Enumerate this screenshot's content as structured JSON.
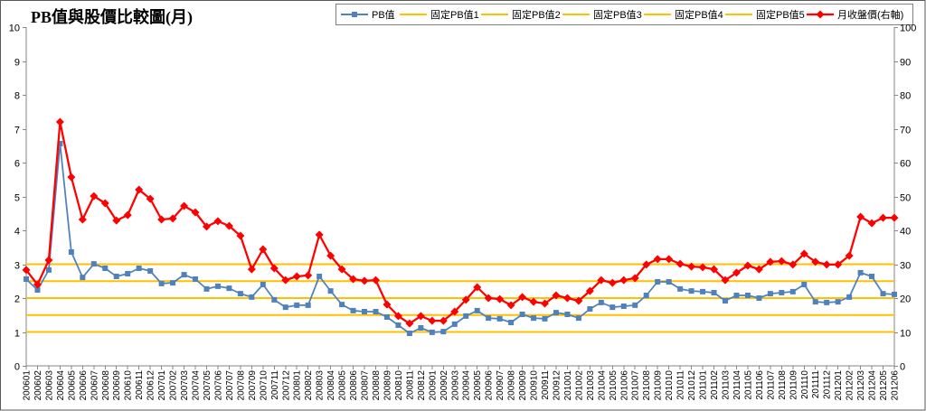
{
  "chart_data": {
    "type": "line",
    "title": "PB值與股價比較圖(月)",
    "ylim": [
      0,
      10
    ],
    "y2lim": [
      0,
      100
    ],
    "y_ticks": [
      0,
      1,
      2,
      3,
      4,
      5,
      6,
      7,
      8,
      9,
      10
    ],
    "y2_ticks": [
      0,
      10,
      20,
      30,
      40,
      50,
      60,
      70,
      80,
      90,
      100
    ],
    "grid": false,
    "legend_position": "top-right",
    "categories": [
      "200601",
      "200602",
      "200603",
      "200604",
      "200605",
      "200606",
      "200607",
      "200608",
      "200609",
      "200610",
      "200611",
      "200612",
      "200701",
      "200702",
      "200703",
      "200704",
      "200705",
      "200706",
      "200707",
      "200708",
      "200709",
      "200710",
      "200711",
      "200712",
      "200801",
      "200802",
      "200803",
      "200804",
      "200805",
      "200806",
      "200807",
      "200808",
      "200809",
      "200810",
      "200811",
      "200812",
      "200901",
      "200902",
      "200903",
      "200904",
      "200905",
      "200906",
      "200907",
      "200908",
      "200909",
      "200910",
      "200911",
      "200912",
      "201001",
      "201002",
      "201003",
      "201004",
      "201005",
      "201006",
      "201007",
      "201008",
      "201009",
      "201010",
      "201011",
      "201012",
      "201101",
      "201102",
      "201103",
      "201104",
      "201105",
      "201106",
      "201107",
      "201108",
      "201109",
      "201110",
      "201111",
      "201112",
      "201201",
      "201202",
      "201203",
      "201204",
      "201205",
      "201206"
    ],
    "series": [
      {
        "name": "PB值",
        "axis": "left",
        "color": "#4F81BD",
        "marker": "square",
        "values": [
          2.56,
          2.24,
          2.83,
          6.56,
          3.36,
          2.61,
          3.01,
          2.88,
          2.64,
          2.72,
          2.88,
          2.8,
          2.43,
          2.45,
          2.69,
          2.56,
          2.27,
          2.35,
          2.29,
          2.13,
          2.03,
          2.4,
          1.95,
          1.73,
          1.79,
          1.79,
          2.64,
          2.21,
          1.81,
          1.63,
          1.6,
          1.6,
          1.44,
          1.2,
          0.96,
          1.12,
          0.99,
          1.01,
          1.23,
          1.47,
          1.63,
          1.41,
          1.39,
          1.28,
          1.52,
          1.41,
          1.39,
          1.57,
          1.52,
          1.41,
          1.68,
          1.87,
          1.73,
          1.76,
          1.79,
          2.08,
          2.48,
          2.48,
          2.27,
          2.21,
          2.19,
          2.16,
          1.92,
          2.08,
          2.08,
          2.0,
          2.13,
          2.16,
          2.19,
          2.4,
          1.89,
          1.87,
          1.89,
          2.03,
          2.75,
          2.64,
          2.13,
          2.11
        ]
      },
      {
        "name": "固定PB值1",
        "axis": "left",
        "color": "#FFC000",
        "marker": "none",
        "values": [
          1,
          1,
          1,
          1,
          1,
          1,
          1,
          1,
          1,
          1,
          1,
          1,
          1,
          1,
          1,
          1,
          1,
          1,
          1,
          1,
          1,
          1,
          1,
          1,
          1,
          1,
          1,
          1,
          1,
          1,
          1,
          1,
          1,
          1,
          1,
          1,
          1,
          1,
          1,
          1,
          1,
          1,
          1,
          1,
          1,
          1,
          1,
          1,
          1,
          1,
          1,
          1,
          1,
          1,
          1,
          1,
          1,
          1,
          1,
          1,
          1,
          1,
          1,
          1,
          1,
          1,
          1,
          1,
          1,
          1,
          1,
          1,
          1,
          1,
          1,
          1,
          1,
          1
        ]
      },
      {
        "name": "固定PB值2",
        "axis": "left",
        "color": "#FFC000",
        "marker": "none",
        "values": [
          1.5,
          1.5,
          1.5,
          1.5,
          1.5,
          1.5,
          1.5,
          1.5,
          1.5,
          1.5,
          1.5,
          1.5,
          1.5,
          1.5,
          1.5,
          1.5,
          1.5,
          1.5,
          1.5,
          1.5,
          1.5,
          1.5,
          1.5,
          1.5,
          1.5,
          1.5,
          1.5,
          1.5,
          1.5,
          1.5,
          1.5,
          1.5,
          1.5,
          1.5,
          1.5,
          1.5,
          1.5,
          1.5,
          1.5,
          1.5,
          1.5,
          1.5,
          1.5,
          1.5,
          1.5,
          1.5,
          1.5,
          1.5,
          1.5,
          1.5,
          1.5,
          1.5,
          1.5,
          1.5,
          1.5,
          1.5,
          1.5,
          1.5,
          1.5,
          1.5,
          1.5,
          1.5,
          1.5,
          1.5,
          1.5,
          1.5,
          1.5,
          1.5,
          1.5,
          1.5,
          1.5,
          1.5,
          1.5,
          1.5,
          1.5,
          1.5,
          1.5,
          1.5
        ]
      },
      {
        "name": "固定PB值3",
        "axis": "left",
        "color": "#FFC000",
        "marker": "none",
        "values": [
          2,
          2,
          2,
          2,
          2,
          2,
          2,
          2,
          2,
          2,
          2,
          2,
          2,
          2,
          2,
          2,
          2,
          2,
          2,
          2,
          2,
          2,
          2,
          2,
          2,
          2,
          2,
          2,
          2,
          2,
          2,
          2,
          2,
          2,
          2,
          2,
          2,
          2,
          2,
          2,
          2,
          2,
          2,
          2,
          2,
          2,
          2,
          2,
          2,
          2,
          2,
          2,
          2,
          2,
          2,
          2,
          2,
          2,
          2,
          2,
          2,
          2,
          2,
          2,
          2,
          2,
          2,
          2,
          2,
          2,
          2,
          2,
          2,
          2,
          2,
          2,
          2,
          2
        ]
      },
      {
        "name": "固定PB值4",
        "axis": "left",
        "color": "#FFC000",
        "marker": "none",
        "values": [
          2.5,
          2.5,
          2.5,
          2.5,
          2.5,
          2.5,
          2.5,
          2.5,
          2.5,
          2.5,
          2.5,
          2.5,
          2.5,
          2.5,
          2.5,
          2.5,
          2.5,
          2.5,
          2.5,
          2.5,
          2.5,
          2.5,
          2.5,
          2.5,
          2.5,
          2.5,
          2.5,
          2.5,
          2.5,
          2.5,
          2.5,
          2.5,
          2.5,
          2.5,
          2.5,
          2.5,
          2.5,
          2.5,
          2.5,
          2.5,
          2.5,
          2.5,
          2.5,
          2.5,
          2.5,
          2.5,
          2.5,
          2.5,
          2.5,
          2.5,
          2.5,
          2.5,
          2.5,
          2.5,
          2.5,
          2.5,
          2.5,
          2.5,
          2.5,
          2.5,
          2.5,
          2.5,
          2.5,
          2.5,
          2.5,
          2.5,
          2.5,
          2.5,
          2.5,
          2.5,
          2.5,
          2.5,
          2.5,
          2.5,
          2.5,
          2.5,
          2.5,
          2.5
        ]
      },
      {
        "name": "固定PB值5",
        "axis": "left",
        "color": "#FFC000",
        "marker": "none",
        "values": [
          3,
          3,
          3,
          3,
          3,
          3,
          3,
          3,
          3,
          3,
          3,
          3,
          3,
          3,
          3,
          3,
          3,
          3,
          3,
          3,
          3,
          3,
          3,
          3,
          3,
          3,
          3,
          3,
          3,
          3,
          3,
          3,
          3,
          3,
          3,
          3,
          3,
          3,
          3,
          3,
          3,
          3,
          3,
          3,
          3,
          3,
          3,
          3,
          3,
          3,
          3,
          3,
          3,
          3,
          3,
          3,
          3,
          3,
          3,
          3,
          3,
          3,
          3,
          3,
          3,
          3,
          3,
          3,
          3,
          3,
          3,
          3,
          3,
          3,
          3,
          3,
          3,
          3
        ]
      },
      {
        "name": "月收盤價(右軸)",
        "axis": "right",
        "color": "#FF0000",
        "marker": "diamond",
        "values": [
          28.3,
          24.0,
          31.2,
          72.0,
          55.7,
          43.2,
          50.1,
          48.0,
          42.9,
          44.5,
          52.0,
          49.3,
          43.2,
          43.5,
          47.2,
          45.3,
          41.1,
          42.7,
          41.3,
          38.4,
          28.5,
          34.4,
          28.8,
          25.3,
          26.4,
          26.7,
          38.7,
          32.5,
          28.5,
          25.6,
          25.1,
          25.3,
          18.1,
          14.7,
          12.5,
          14.7,
          13.3,
          13.3,
          16.0,
          19.5,
          23.2,
          20.0,
          19.7,
          17.9,
          20.3,
          18.9,
          18.4,
          20.8,
          20.0,
          19.2,
          22.1,
          25.3,
          24.5,
          25.3,
          25.9,
          29.9,
          31.5,
          31.5,
          30.1,
          29.3,
          29.1,
          28.5,
          25.3,
          27.5,
          29.6,
          28.5,
          30.7,
          30.9,
          29.9,
          33.1,
          30.7,
          29.9,
          29.9,
          32.5,
          44.0,
          42.1,
          43.7,
          43.7
        ]
      }
    ]
  }
}
